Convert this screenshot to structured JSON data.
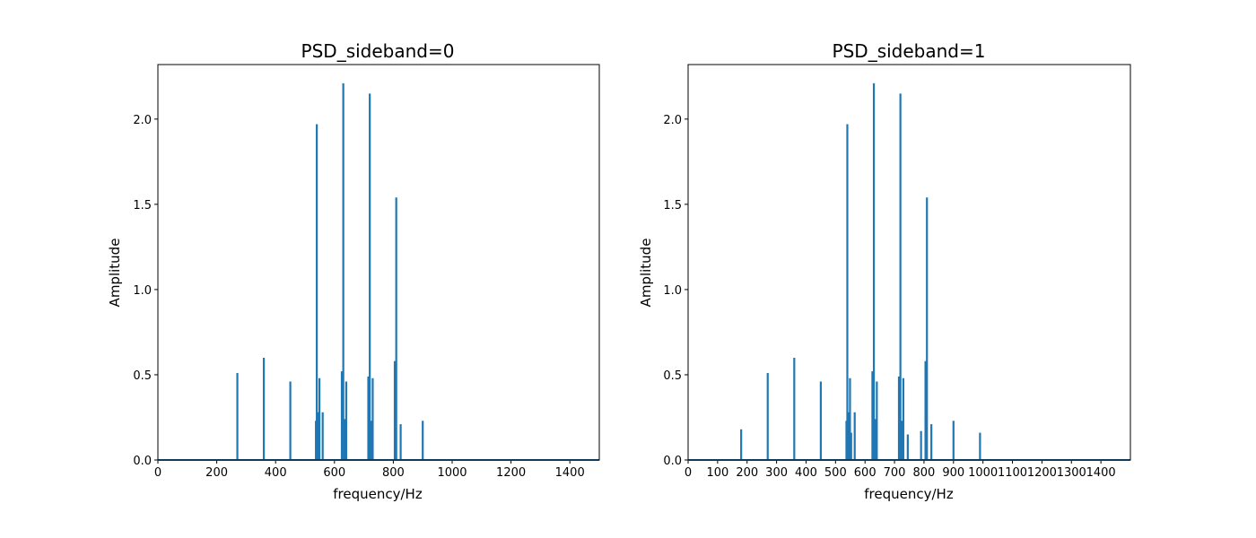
{
  "chart_data": [
    {
      "type": "line",
      "title": "PSD_sideband=0",
      "xlabel": "frequency/Hz",
      "ylabel": "Amplitude",
      "xlim": [
        0,
        1500
      ],
      "ylim": [
        0,
        2.32
      ],
      "xticks": [
        0,
        200,
        400,
        600,
        800,
        1000,
        1200,
        1400
      ],
      "xtick_labels": [
        "0",
        "200",
        "400",
        "600",
        "800",
        "1000",
        "1200",
        "1400"
      ],
      "yticks": [
        0.0,
        0.5,
        1.0,
        1.5,
        2.0
      ],
      "ytick_labels": [
        "0.0",
        "0.5",
        "1.0",
        "1.5",
        "2.0"
      ],
      "grid": false,
      "color": "#1f77b4",
      "series": [
        {
          "peaks": [
            {
              "x": 270,
              "y": 0.51
            },
            {
              "x": 360,
              "y": 0.6
            },
            {
              "x": 450,
              "y": 0.46
            },
            {
              "x": 537,
              "y": 0.23
            },
            {
              "x": 540,
              "y": 1.97
            },
            {
              "x": 545,
              "y": 0.28
            },
            {
              "x": 549,
              "y": 0.48
            },
            {
              "x": 560,
              "y": 0.28
            },
            {
              "x": 625,
              "y": 0.52
            },
            {
              "x": 630,
              "y": 2.21
            },
            {
              "x": 635,
              "y": 0.24
            },
            {
              "x": 640,
              "y": 0.46
            },
            {
              "x": 715,
              "y": 0.49
            },
            {
              "x": 720,
              "y": 2.15
            },
            {
              "x": 725,
              "y": 0.23
            },
            {
              "x": 730,
              "y": 0.48
            },
            {
              "x": 805,
              "y": 0.58
            },
            {
              "x": 810,
              "y": 1.54
            },
            {
              "x": 825,
              "y": 0.21
            },
            {
              "x": 900,
              "y": 0.23
            }
          ]
        }
      ]
    },
    {
      "type": "line",
      "title": "PSD_sideband=1",
      "xlabel": "frequency/Hz",
      "ylabel": "Amplitude",
      "xlim": [
        0,
        1500
      ],
      "ylim": [
        0,
        2.32
      ],
      "xticks": [
        0,
        100,
        200,
        300,
        400,
        500,
        600,
        700,
        800,
        900,
        1000,
        1100,
        1200,
        1300,
        1400
      ],
      "xtick_labels": [
        "0",
        "100",
        "200",
        "300",
        "400",
        "500",
        "600",
        "700",
        "800",
        "900",
        "1000",
        "1100",
        "1200",
        "1300",
        "1400"
      ],
      "yticks": [
        0.0,
        0.5,
        1.0,
        1.5,
        2.0
      ],
      "ytick_labels": [
        "0.0",
        "0.5",
        "1.0",
        "1.5",
        "2.0"
      ],
      "grid": false,
      "color": "#1f77b4",
      "series": [
        {
          "peaks": [
            {
              "x": 180,
              "y": 0.18
            },
            {
              "x": 270,
              "y": 0.51
            },
            {
              "x": 360,
              "y": 0.6
            },
            {
              "x": 450,
              "y": 0.46
            },
            {
              "x": 537,
              "y": 0.23
            },
            {
              "x": 540,
              "y": 1.97
            },
            {
              "x": 545,
              "y": 0.28
            },
            {
              "x": 549,
              "y": 0.48
            },
            {
              "x": 553,
              "y": 0.16
            },
            {
              "x": 565,
              "y": 0.28
            },
            {
              "x": 625,
              "y": 0.52
            },
            {
              "x": 630,
              "y": 2.21
            },
            {
              "x": 635,
              "y": 0.24
            },
            {
              "x": 640,
              "y": 0.46
            },
            {
              "x": 715,
              "y": 0.49
            },
            {
              "x": 720,
              "y": 2.15
            },
            {
              "x": 725,
              "y": 0.23
            },
            {
              "x": 730,
              "y": 0.48
            },
            {
              "x": 745,
              "y": 0.15
            },
            {
              "x": 790,
              "y": 0.17
            },
            {
              "x": 805,
              "y": 0.58
            },
            {
              "x": 810,
              "y": 1.54
            },
            {
              "x": 825,
              "y": 0.21
            },
            {
              "x": 900,
              "y": 0.23
            },
            {
              "x": 990,
              "y": 0.16
            }
          ]
        }
      ]
    }
  ]
}
